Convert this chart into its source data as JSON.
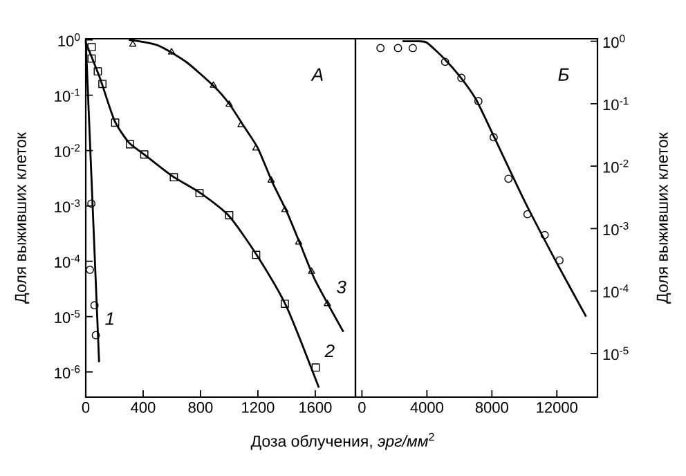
{
  "chart_data": [
    {
      "type": "scatter",
      "xlabel": "Доза облучения, *эрг/мм*$^{2}$",
      "ylabel": "Доля выживших клеток",
      "annotations": [
        "А"
      ],
      "log": "y",
      "xlim": [
        0,
        1880
      ],
      "ylim": [
        3.5e-07,
        1.05
      ],
      "xticks": [
        0,
        400,
        800,
        1200,
        1600
      ],
      "yticks": [
        {
          "value": 1,
          "label": "10$^{0}$"
        },
        {
          "value": 0.1,
          "label": "10$^{-1}$"
        },
        {
          "value": 0.01,
          "label": "10$^{-2}$"
        },
        {
          "value": 0.001,
          "label": "10$^{-3}$"
        },
        {
          "value": 0.0001,
          "label": "10$^{-4}$"
        },
        {
          "value": 1e-05,
          "label": "10$^{-5}$"
        },
        {
          "value": 1e-06,
          "label": "10$^{-6}$"
        }
      ],
      "series": [
        {
          "name": "1",
          "marker": "circle",
          "color": "#000000",
          "x": [
            39,
            29,
            61,
            70
          ],
          "values": [
            0.0011,
            7e-05,
            1.6e-05,
            4.6e-06
          ]
        },
        {
          "type": "line",
          "marker": "none",
          "color": "#000000",
          "x": [
            0,
            93
          ],
          "values": [
            1,
            1.5e-06
          ]
        },
        {
          "name": "2",
          "marker": "square",
          "color": "#000000",
          "x": [
            41,
            41,
            84,
            116,
            205,
            308,
            408,
            614,
            793,
            1000,
            1188,
            1388,
            1603
          ],
          "values": [
            0.74,
            0.46,
            0.27,
            0.16,
            0.032,
            0.013,
            0.0085,
            0.0033,
            0.0017,
            0.00068,
            0.00013,
            1.7e-05,
            1.2e-06
          ]
        },
        {
          "type": "line",
          "marker": "none",
          "color": "#000000",
          "x": [
            0,
            100,
            200,
            300,
            400,
            600,
            800,
            1000,
            1200,
            1400,
            1625
          ],
          "values": [
            0.9,
            0.2,
            0.035,
            0.014,
            0.0088,
            0.0035,
            0.0017,
            0.00065,
            0.00012,
            1.5e-05,
            5.2e-07
          ]
        },
        {
          "name": "3",
          "marker": "triangle",
          "color": "#000000",
          "x": [
            328,
            598,
            890,
            1000,
            1082,
            1186,
            1292,
            1388,
            1484,
            1574,
            1684
          ],
          "values": [
            0.83,
            0.6,
            0.15,
            0.068,
            0.029,
            0.011,
            0.0029,
            0.00085,
            0.00022,
            6.5e-05,
            1.7e-05
          ]
        },
        {
          "type": "line",
          "marker": "none",
          "color": "#000000",
          "x": [
            300,
            500,
            700,
            900,
            1000,
            1100,
            1200,
            1300,
            1400,
            1500,
            1600,
            1796
          ],
          "values": [
            1,
            0.8,
            0.4,
            0.14,
            0.07,
            0.028,
            0.011,
            0.0027,
            0.0008,
            0.00019,
            4.5e-05,
            5.3e-06
          ]
        }
      ]
    },
    {
      "type": "scatter",
      "y2label": "Доля выживших клеток",
      "annotations": [
        "Б"
      ],
      "log": "y2",
      "xlim": [
        -400,
        14500
      ],
      "y2lim": [
        2e-06,
        1.1
      ],
      "xticks": [
        0,
        4000,
        8000,
        12000
      ],
      "y2ticks": [
        {
          "value": 1,
          "label": "10$^{0}$"
        },
        {
          "value": 0.1,
          "label": "10$^{-1}$"
        },
        {
          "value": 0.01,
          "label": "10$^{-2}$"
        },
        {
          "value": 0.001,
          "label": "10$^{-3}$"
        },
        {
          "value": 0.0001,
          "label": "10$^{-4}$"
        },
        {
          "value": 1e-05,
          "label": "10$^{-5}$"
        }
      ],
      "series": [
        {
          "axis": "y2",
          "marker": "circle",
          "color": "#000000",
          "x": [
            1140,
            2220,
            3130,
            5120,
            6120,
            7170,
            8110,
            9020,
            10190,
            11250,
            12160
          ],
          "values": [
            0.78,
            0.78,
            0.78,
            0.47,
            0.26,
            0.11,
            0.029,
            0.0063,
            0.0017,
            0.00079,
            0.00031
          ]
        },
        {
          "type": "line",
          "axis": "y2",
          "marker": "none",
          "color": "#000000",
          "x": [
            2500,
            3500,
            4000,
            5000,
            6000,
            7000,
            8000,
            10000,
            12000,
            13800
          ],
          "values": [
            1,
            1,
            0.95,
            0.55,
            0.28,
            0.12,
            0.035,
            0.0028,
            0.00028,
            3.9e-05
          ]
        }
      ]
    }
  ]
}
